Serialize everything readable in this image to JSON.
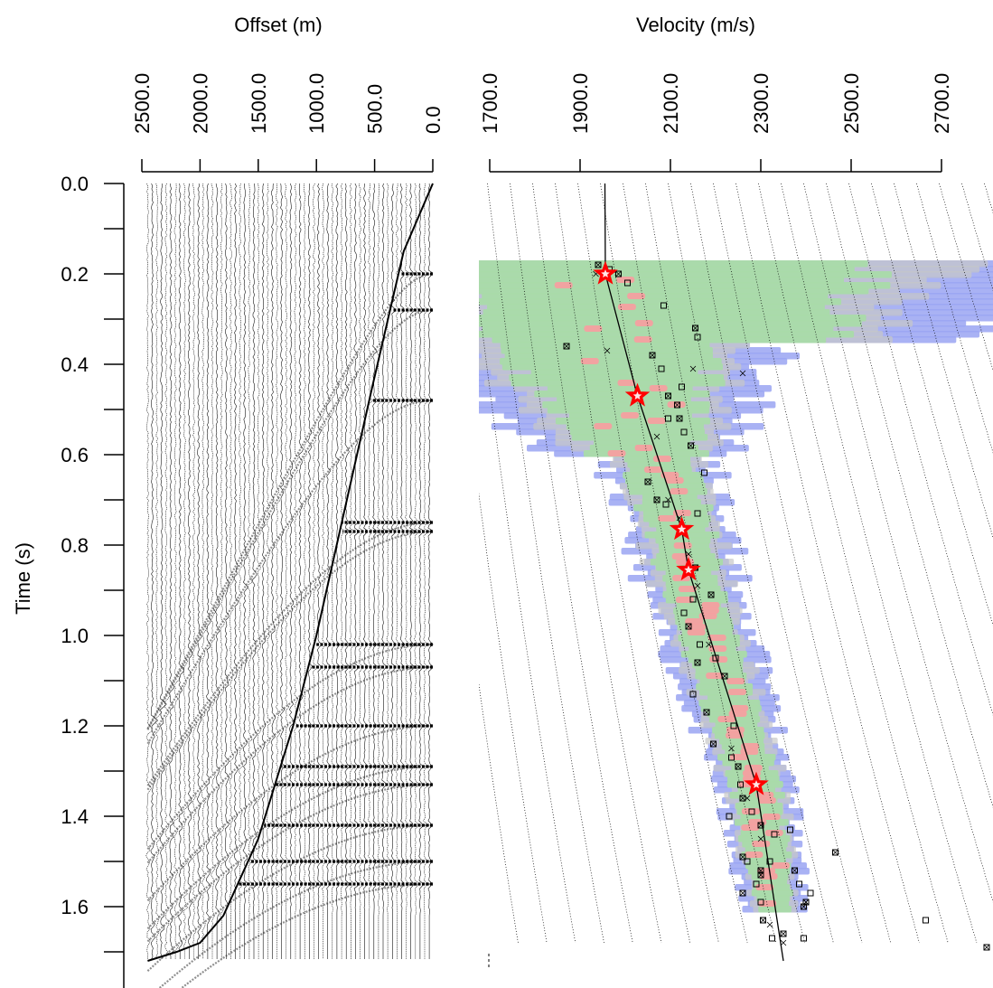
{
  "chart_data": [
    {
      "type": "line",
      "panel": "offset-gather",
      "xlabel": "Offset (m)",
      "ylabel": "Time (s)",
      "x_ticks": [
        2500.0,
        2000.0,
        1500.0,
        1000.0,
        500.0,
        0.0
      ],
      "x_tick_labels": [
        "2500.0",
        "2000.0",
        "1500.0",
        "1000.0",
        "500.0",
        "0.0"
      ],
      "y_ticks": [
        0.0,
        0.2,
        0.4,
        0.6,
        0.8,
        1.0,
        1.2,
        1.4,
        1.6
      ],
      "y_tick_labels": [
        "0.0",
        "0.2",
        "0.4",
        "0.6",
        "0.8",
        "1.0",
        "1.2",
        "1.4",
        "1.6"
      ],
      "xlim": [
        2500,
        0
      ],
      "ylim": [
        0,
        1.72
      ],
      "mute_line": {
        "offset": [
          0,
          250,
          520,
          800,
          1000,
          1200,
          1500,
          1800,
          2000,
          2200,
          2450
        ],
        "time": [
          0.0,
          0.15,
          0.45,
          0.77,
          1.0,
          1.2,
          1.45,
          1.62,
          1.68,
          1.7,
          1.72
        ]
      },
      "reflector_times": [
        0.2,
        0.28,
        0.48,
        0.75,
        0.77,
        1.02,
        1.07,
        1.2,
        1.29,
        1.33,
        1.42,
        1.5,
        1.55
      ]
    },
    {
      "type": "scatter",
      "panel": "velocity-semblance",
      "xlabel": "Velocity (m/s)",
      "x_ticks": [
        1700.0,
        1900.0,
        2100.0,
        2300.0,
        2500.0,
        2700.0
      ],
      "x_tick_labels": [
        "1700.0",
        "1900.0",
        "2100.0",
        "2300.0",
        "2500.0",
        "2700.0"
      ],
      "xlim": [
        1700,
        2700
      ],
      "ylim": [
        0,
        1.72
      ],
      "picks": {
        "velocity": [
          1956,
          2027,
          2125,
          2140,
          2290
        ],
        "time": [
          0.2,
          0.47,
          0.765,
          0.855,
          1.33
        ]
      },
      "velocity_function": {
        "velocity": [
          1955,
          1956,
          2027,
          2125,
          2140,
          2290,
          2350
        ],
        "time": [
          0.0,
          0.2,
          0.47,
          0.765,
          0.855,
          1.33,
          1.72
        ]
      },
      "boxed_points": {
        "velocity": [
          1940,
          1965,
          1985,
          2005,
          1870,
          2085,
          2155,
          2160,
          2060,
          2080,
          2095,
          2125,
          2115,
          2095,
          2120,
          2130,
          2145,
          2175,
          2050,
          2090,
          2070,
          2160,
          2155,
          2150,
          2190,
          2130,
          2140,
          2165,
          2160,
          2200,
          2220,
          2150,
          2180,
          2240,
          2195,
          2235,
          2250,
          2255,
          2260,
          2280,
          2300,
          2230,
          2260,
          2320,
          2300,
          2290,
          2260,
          2300,
          2305,
          2325,
          2375,
          2385,
          2395,
          2410,
          2400,
          2330,
          2350,
          2270,
          2300,
          2395,
          2465,
          2665,
          2800,
          2365
        ],
        "time": [
          0.18,
          0.19,
          0.2,
          0.22,
          0.36,
          0.27,
          0.32,
          0.34,
          0.38,
          0.41,
          0.47,
          0.45,
          0.49,
          0.52,
          0.52,
          0.55,
          0.58,
          0.64,
          0.66,
          0.71,
          0.7,
          0.73,
          0.85,
          0.92,
          0.91,
          0.95,
          0.98,
          1.02,
          1.06,
          1.05,
          1.09,
          1.13,
          1.17,
          1.2,
          1.24,
          1.27,
          1.29,
          1.33,
          1.36,
          1.39,
          1.42,
          1.4,
          1.49,
          1.5,
          1.52,
          1.55,
          1.57,
          1.59,
          1.63,
          1.67,
          1.52,
          1.55,
          1.6,
          1.57,
          1.59,
          1.44,
          1.66,
          1.5,
          1.53,
          1.67,
          1.48,
          1.63,
          1.69,
          1.43
        ],
        "x_marks": [
          [
            1935,
            0.2
          ],
          [
            1960,
            0.37
          ],
          [
            2150,
            0.41
          ],
          [
            2260,
            0.42
          ],
          [
            2070,
            0.56
          ],
          [
            2095,
            0.7
          ],
          [
            2120,
            0.74
          ],
          [
            2140,
            0.82
          ],
          [
            2160,
            0.89
          ],
          [
            2185,
            1.02
          ],
          [
            2235,
            1.25
          ],
          [
            2270,
            1.36
          ],
          [
            2300,
            1.45
          ],
          [
            2320,
            1.64
          ],
          [
            2350,
            1.68
          ],
          [
            2400,
            1.59
          ]
        ]
      },
      "semblance_levels": [
        "blue",
        "green",
        "red",
        "grey"
      ]
    }
  ],
  "labels": {
    "offset_title": "Offset (m)",
    "velocity_title": "Velocity (m/s)",
    "time_label": "Time (s)"
  },
  "colors": {
    "pick_star": "#ff0000",
    "semblance_blue": "#9aa4f2",
    "semblance_green": "#a9dba9",
    "semblance_red": "#f4a0a0",
    "semblance_grey": "#c8c8c8",
    "ink": "#000000"
  }
}
